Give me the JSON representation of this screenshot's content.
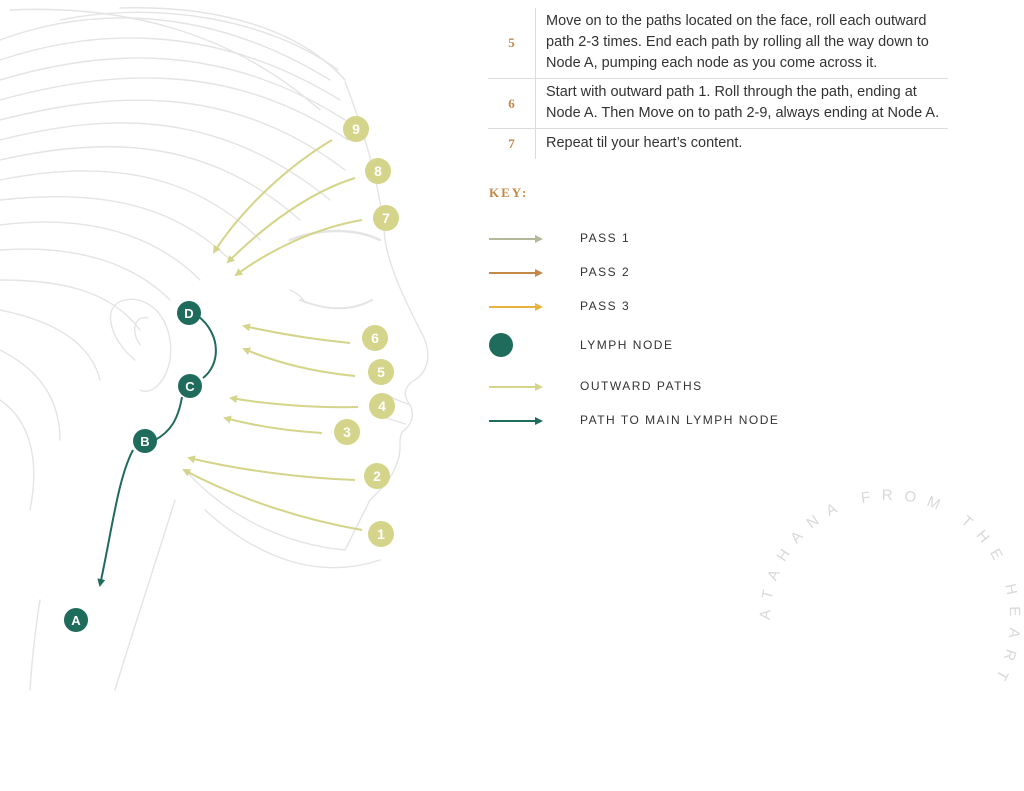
{
  "colors": {
    "pass1": "#b4b79a",
    "pass2": "#c4884a",
    "pass3": "#e6b43c",
    "outward": "#d4d48a",
    "node": "#1f6b5c",
    "line_art": "#e4e4e4",
    "accent": "#c4884a"
  },
  "steps": [
    {
      "number": "5",
      "text": "Move on to the paths located on the face, roll each outward path 2-3 times. End each path by rolling all the way down to Node A, pumping each node as you come across it."
    },
    {
      "number": "6",
      "text": "Start with outward path 1. Roll through the path, ending at Node A. Then Move on to path 2-9, always ending at Node A."
    },
    {
      "number": "7",
      "text": "Repeat til your heart’s content."
    }
  ],
  "key": {
    "title": "KEY:",
    "items": [
      {
        "label": "PASS 1",
        "type": "arrow",
        "color_key": "pass1"
      },
      {
        "label": "PASS 2",
        "type": "arrow",
        "color_key": "pass2"
      },
      {
        "label": "PASS 3",
        "type": "arrow",
        "color_key": "pass3"
      },
      {
        "label": "LYMPH NODE",
        "type": "dot",
        "color_key": "node"
      },
      {
        "label": "OUTWARD PATHS",
        "type": "arrow",
        "color_key": "outward"
      },
      {
        "label": "PATH TO MAIN LYMPH NODE",
        "type": "arrow",
        "color_key": "node"
      }
    ]
  },
  "nodes": [
    "D",
    "C",
    "B",
    "A"
  ],
  "paths": [
    "1",
    "2",
    "3",
    "4",
    "5",
    "6",
    "7",
    "8",
    "9"
  ],
  "watermark": "ATAHANA FROM THE HEART"
}
